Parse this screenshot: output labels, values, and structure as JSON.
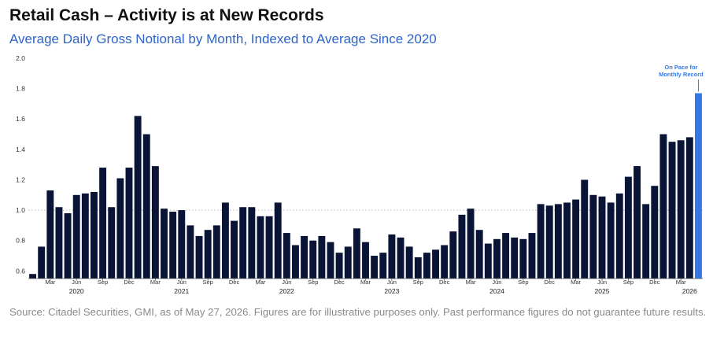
{
  "header": {
    "title": "Retail Cash – Activity is at New Records",
    "subtitle": "Average Daily Gross Notional by Month, Indexed to Average Since 2020"
  },
  "footer": {
    "source": "Source: Citadel Securities, GMI, as of May 27, 2026. Figures are for illustrative purposes only. Past performance figures do not guarantee future results."
  },
  "chart_data": {
    "type": "bar",
    "title": "Retail Cash – Activity is at New Records",
    "subtitle": "Average Daily Gross Notional by Month, Indexed to Average Since 2020",
    "categories": [
      "Jan 2020",
      "Feb 2020",
      "Mar 2020",
      "Apr 2020",
      "May 2020",
      "Jun 2020",
      "Jul 2020",
      "Aug 2020",
      "Sep 2020",
      "Oct 2020",
      "Nov 2020",
      "Dec 2020",
      "Jan 2021",
      "Feb 2021",
      "Mar 2021",
      "Apr 2021",
      "May 2021",
      "Jun 2021",
      "Jul 2021",
      "Aug 2021",
      "Sep 2021",
      "Oct 2021",
      "Nov 2021",
      "Dec 2021",
      "Jan 2022",
      "Feb 2022",
      "Mar 2022",
      "Apr 2022",
      "May 2022",
      "Jun 2022",
      "Jul 2022",
      "Aug 2022",
      "Sep 2022",
      "Oct 2022",
      "Nov 2022",
      "Dec 2022",
      "Jan 2023",
      "Feb 2023",
      "Mar 2023",
      "Apr 2023",
      "May 2023",
      "Jun 2023",
      "Jul 2023",
      "Aug 2023",
      "Sep 2023",
      "Oct 2023",
      "Nov 2023",
      "Dec 2023",
      "Jan 2024",
      "Feb 2024",
      "Mar 2024",
      "Apr 2024",
      "May 2024",
      "Jun 2024",
      "Jul 2024",
      "Aug 2024",
      "Sep 2024",
      "Oct 2024",
      "Nov 2024",
      "Dec 2024",
      "Jan 2025",
      "Feb 2025",
      "Mar 2025",
      "Apr 2025",
      "May 2025",
      "Jun 2025",
      "Jul 2025",
      "Aug 2025",
      "Sep 2025",
      "Oct 2025",
      "Nov 2025",
      "Dec 2025",
      "Jan 2026",
      "Feb 2026",
      "Mar 2026",
      "Apr 2026",
      "May 2026"
    ],
    "values": [
      0.58,
      0.76,
      1.13,
      1.02,
      0.98,
      1.1,
      1.11,
      1.12,
      1.28,
      1.02,
      1.21,
      1.28,
      1.62,
      1.5,
      1.29,
      1.01,
      0.99,
      1.0,
      0.9,
      0.83,
      0.87,
      0.9,
      1.05,
      0.93,
      1.02,
      1.02,
      0.96,
      0.96,
      1.05,
      0.85,
      0.77,
      0.83,
      0.8,
      0.83,
      0.79,
      0.72,
      0.76,
      0.88,
      0.79,
      0.7,
      0.72,
      0.84,
      0.82,
      0.76,
      0.69,
      0.72,
      0.74,
      0.77,
      0.86,
      0.97,
      1.01,
      0.87,
      0.78,
      0.81,
      0.85,
      0.82,
      0.81,
      0.85,
      1.04,
      1.03,
      1.04,
      1.05,
      1.07,
      1.2,
      1.1,
      1.09,
      1.05,
      1.11,
      1.22,
      1.29,
      1.04,
      1.16,
      1.5,
      1.45,
      1.46,
      1.48,
      1.77
    ],
    "highlight_index": 76,
    "bar_color": "#0a1436",
    "highlight_color": "#3578e5",
    "ylim": [
      0.55,
      2.0
    ],
    "yticks": [
      0.6,
      0.8,
      1.0,
      1.2,
      1.4,
      1.6,
      1.8,
      2.0
    ],
    "ytick_labels": [
      "0.6",
      "0.8",
      "1.0",
      "1.2",
      "1.4",
      "1.6",
      "1.8",
      "2.0"
    ],
    "reference_line": 1.0,
    "month_ticks": [
      {
        "i": 2,
        "label": "Mar"
      },
      {
        "i": 5,
        "label": "Jun"
      },
      {
        "i": 8,
        "label": "Sep"
      },
      {
        "i": 11,
        "label": "Dec"
      },
      {
        "i": 14,
        "label": "Mar"
      },
      {
        "i": 17,
        "label": "Jun"
      },
      {
        "i": 20,
        "label": "Sep"
      },
      {
        "i": 23,
        "label": "Dec"
      },
      {
        "i": 26,
        "label": "Mar"
      },
      {
        "i": 29,
        "label": "Jun"
      },
      {
        "i": 32,
        "label": "Sep"
      },
      {
        "i": 35,
        "label": "Dec"
      },
      {
        "i": 38,
        "label": "Mar"
      },
      {
        "i": 41,
        "label": "Jun"
      },
      {
        "i": 44,
        "label": "Sep"
      },
      {
        "i": 47,
        "label": "Dec"
      },
      {
        "i": 50,
        "label": "Mar"
      },
      {
        "i": 53,
        "label": "Jun"
      },
      {
        "i": 56,
        "label": "Sep"
      },
      {
        "i": 59,
        "label": "Dec"
      },
      {
        "i": 62,
        "label": "Mar"
      },
      {
        "i": 65,
        "label": "Jun"
      },
      {
        "i": 68,
        "label": "Sep"
      },
      {
        "i": 71,
        "label": "Dec"
      },
      {
        "i": 74,
        "label": "Mar"
      }
    ],
    "year_labels": [
      {
        "i": 5,
        "label": "2020"
      },
      {
        "i": 17,
        "label": "2021"
      },
      {
        "i": 29,
        "label": "2022"
      },
      {
        "i": 41,
        "label": "2023"
      },
      {
        "i": 53,
        "label": "2024"
      },
      {
        "i": 65,
        "label": "2025"
      },
      {
        "i": 75,
        "label": "2026"
      }
    ],
    "annotation": {
      "lines": [
        "On Pace for",
        "Monthly Record"
      ],
      "color": "#3578e5",
      "target_index": 76
    },
    "grid": false,
    "legend": "none"
  }
}
